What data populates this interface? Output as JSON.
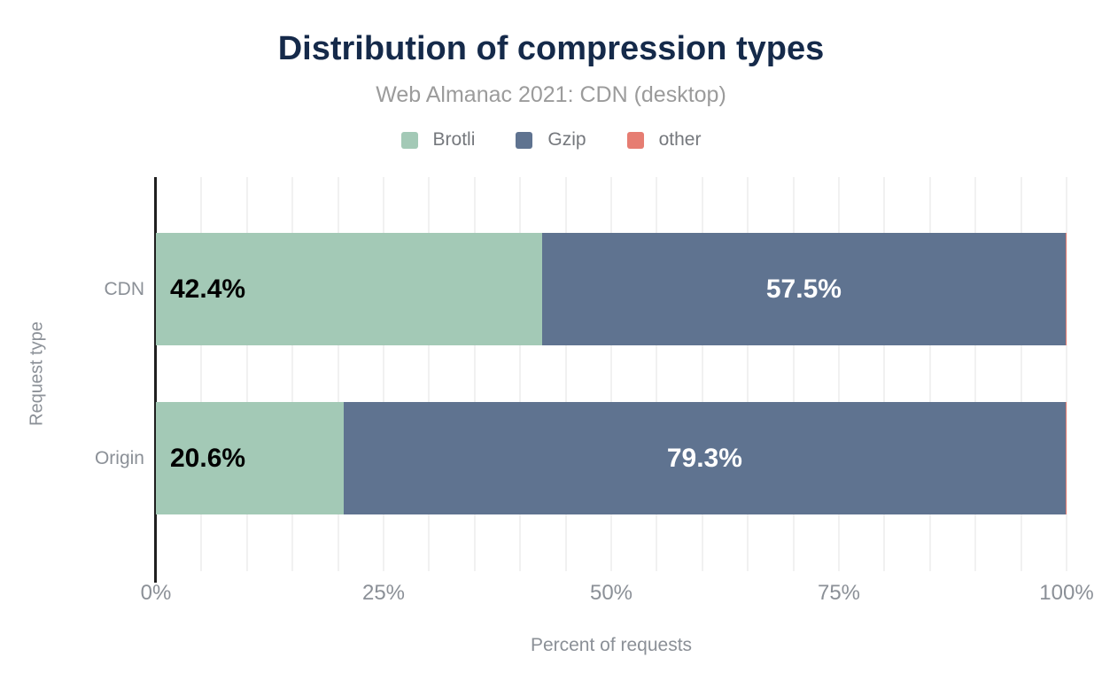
{
  "chart_data": {
    "type": "bar",
    "orientation": "horizontal",
    "stacked": true,
    "title": "Distribution of compression types",
    "subtitle": "Web Almanac 2021: CDN (desktop)",
    "xlabel": "Percent of requests",
    "ylabel": "Request type",
    "categories": [
      "CDN",
      "Origin"
    ],
    "series": [
      {
        "name": "Brotli",
        "color": "#a3c9b6",
        "values": [
          42.4,
          20.6
        ],
        "data_labels": [
          "42.4%",
          "20.6%"
        ],
        "label_color": "#000000",
        "label_align": "left"
      },
      {
        "name": "Gzip",
        "color": "#5f7390",
        "values": [
          57.5,
          79.3
        ],
        "data_labels": [
          "57.5%",
          "79.3%"
        ],
        "label_color": "#ffffff",
        "label_align": "center"
      },
      {
        "name": "other",
        "color": "#e67d72",
        "values": [
          0.1,
          0.1
        ],
        "data_labels": [
          "",
          ""
        ],
        "label_color": "#ffffff",
        "label_align": "center"
      }
    ],
    "x_ticks": [
      "0%",
      "25%",
      "50%",
      "75%",
      "100%"
    ],
    "xlim": [
      0,
      100
    ],
    "gridline_interval_percent": 5,
    "legend_position": "top",
    "grid": true,
    "colors": {
      "title": "#152a4a",
      "subtitle": "#9b9b9b",
      "axis_text": "#8b9097",
      "legend_text": "#75787d",
      "gridline": "#f1f1f1",
      "axis_line": "#1f1f1f",
      "background": "#ffffff"
    }
  }
}
